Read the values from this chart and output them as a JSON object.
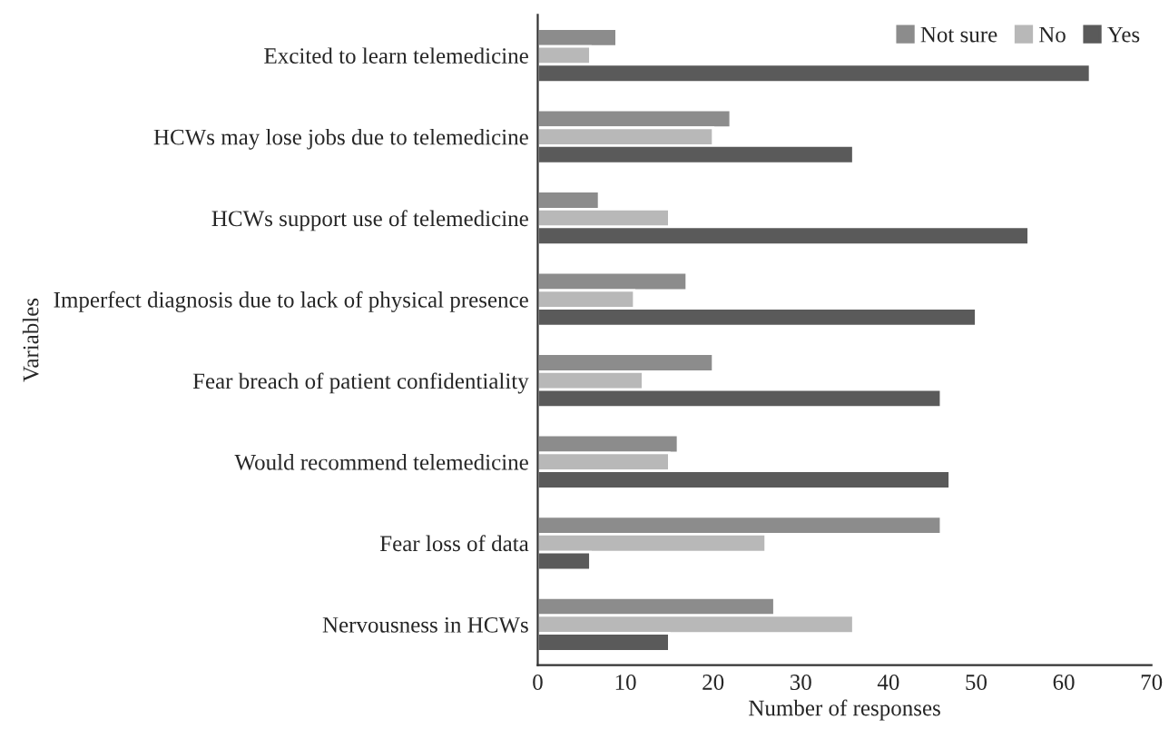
{
  "chart_data": {
    "type": "bar",
    "orientation": "horizontal",
    "xlabel": "Number of responses",
    "ylabel": "Variables",
    "categories": [
      "Excited to learn telemedicine",
      "HCWs may lose jobs due to telemedicine",
      "HCWs support use of telemedicine",
      "Imperfect diagnosis due to lack of physical presence",
      "Fear breach of patient confidentiality",
      "Would recommend telemedicine",
      "Fear loss of data",
      "Nervousness in HCWs"
    ],
    "series": [
      {
        "name": "Not sure",
        "color": "#8c8c8c",
        "values": [
          9,
          22,
          7,
          17,
          20,
          16,
          46,
          27
        ]
      },
      {
        "name": "No",
        "color": "#b8b8b8",
        "values": [
          6,
          20,
          15,
          11,
          12,
          15,
          26,
          36
        ]
      },
      {
        "name": "Yes",
        "color": "#5a5a5a",
        "values": [
          63,
          36,
          56,
          50,
          46,
          47,
          6,
          15
        ]
      }
    ],
    "xlim": [
      0,
      70
    ],
    "xticks": [
      0,
      10,
      20,
      30,
      40,
      50,
      60,
      70
    ],
    "grid": false,
    "legend": "top right"
  }
}
